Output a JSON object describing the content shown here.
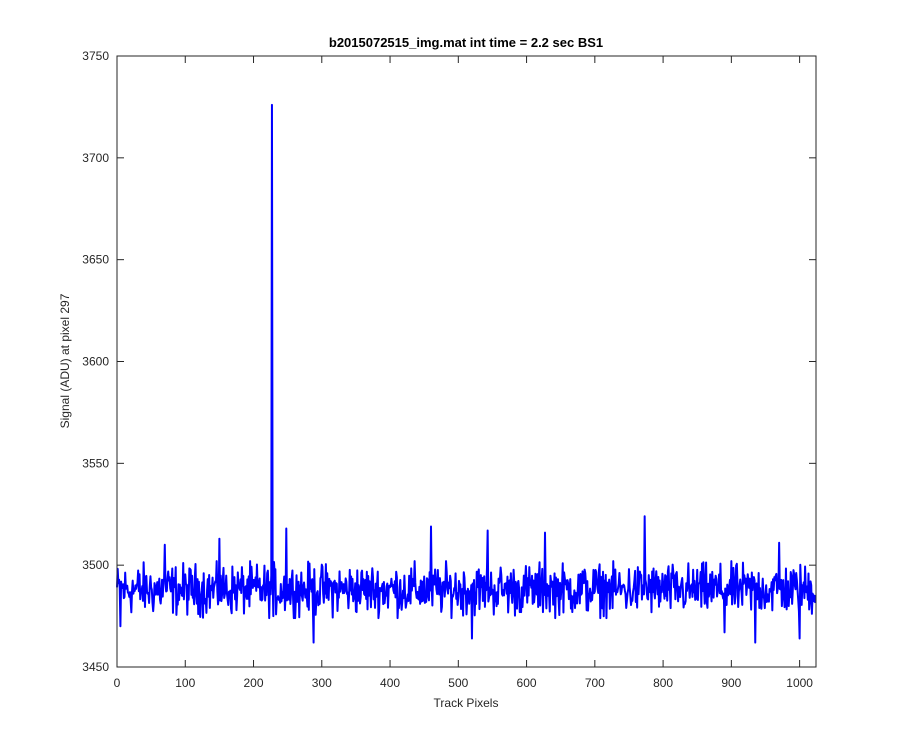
{
  "chart_data": {
    "type": "line",
    "title": "b2015072515_img.mat int time = 2.2 sec   BS1",
    "xlabel": "Track Pixels",
    "ylabel": "Signal (ADU) at pixel 297",
    "xlim": [
      0,
      1024
    ],
    "ylim": [
      3450,
      3750
    ],
    "xticks": [
      0,
      100,
      200,
      300,
      400,
      500,
      600,
      700,
      800,
      900,
      1000
    ],
    "yticks": [
      3450,
      3500,
      3550,
      3600,
      3650,
      3700,
      3750
    ],
    "grid": false,
    "series": [
      {
        "color": "#0000ff",
        "baseline_mean": 3488,
        "noise_amplitude": 9,
        "n_points": 1024,
        "spikes": [
          {
            "x": 227,
            "y": 3726
          },
          {
            "x": 226,
            "y": 3495
          },
          {
            "x": 228,
            "y": 3493
          },
          {
            "x": 229,
            "y": 3475
          },
          {
            "x": 248,
            "y": 3518
          },
          {
            "x": 773,
            "y": 3524
          },
          {
            "x": 460,
            "y": 3519
          },
          {
            "x": 543,
            "y": 3517
          },
          {
            "x": 627,
            "y": 3516
          },
          {
            "x": 70,
            "y": 3510
          },
          {
            "x": 150,
            "y": 3513
          },
          {
            "x": 970,
            "y": 3511
          },
          {
            "x": 288,
            "y": 3462
          },
          {
            "x": 520,
            "y": 3464
          },
          {
            "x": 935,
            "y": 3462
          },
          {
            "x": 1000,
            "y": 3464
          },
          {
            "x": 890,
            "y": 3467
          },
          {
            "x": 5,
            "y": 3470
          }
        ]
      }
    ]
  }
}
